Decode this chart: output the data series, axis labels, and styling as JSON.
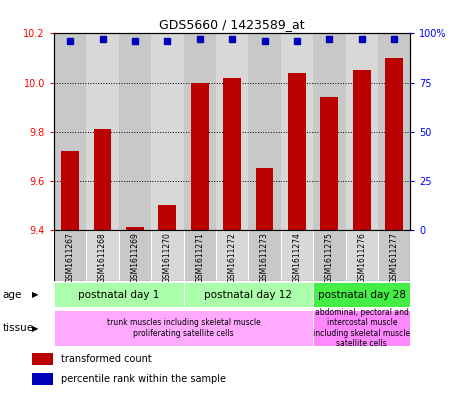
{
  "title": "GDS5660 / 1423589_at",
  "samples": [
    "GSM1611267",
    "GSM1611268",
    "GSM1611269",
    "GSM1611270",
    "GSM1611271",
    "GSM1611272",
    "GSM1611273",
    "GSM1611274",
    "GSM1611275",
    "GSM1611276",
    "GSM1611277"
  ],
  "transformed_counts": [
    9.72,
    9.81,
    9.41,
    9.5,
    10.0,
    10.02,
    9.65,
    10.04,
    9.94,
    10.05,
    10.1
  ],
  "percentile_ranks": [
    96,
    97,
    96,
    96,
    97,
    97,
    96,
    96,
    97,
    97,
    97
  ],
  "ylim_left": [
    9.4,
    10.2
  ],
  "ylim_right": [
    0,
    100
  ],
  "yticks_left": [
    9.4,
    9.6,
    9.8,
    10.0,
    10.2
  ],
  "yticks_right": [
    0,
    25,
    50,
    75,
    100
  ],
  "bar_color": "#bb0000",
  "dot_color": "#0000bb",
  "age_groups": [
    {
      "label": "postnatal day 1",
      "start": 0,
      "end": 3,
      "color": "#aaffaa"
    },
    {
      "label": "postnatal day 12",
      "start": 4,
      "end": 7,
      "color": "#aaffaa"
    },
    {
      "label": "postnatal day 28",
      "start": 8,
      "end": 10,
      "color": "#44ee44"
    }
  ],
  "tissue_groups": [
    {
      "label": "trunk muscles including skeletal muscle\nproliferating satellite cells",
      "start": 0,
      "end": 7,
      "color": "#ffaaff"
    },
    {
      "label": "abdominal, pectoral and\nintercostal muscle\nincluding skeletal muscle\nsatellite cells",
      "start": 8,
      "end": 10,
      "color": "#ff88ff"
    }
  ],
  "legend_bar_label": "transformed count",
  "legend_dot_label": "percentile rank within the sample",
  "age_label": "age",
  "tissue_label": "tissue",
  "col_colors": [
    "#c8c8c8",
    "#d8d8d8"
  ],
  "bg_color": "#ffffff"
}
